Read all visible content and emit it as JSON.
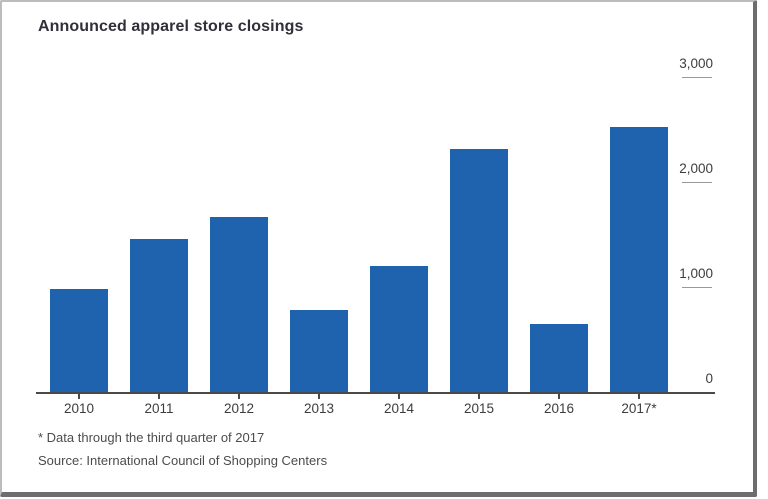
{
  "title": "Announced apparel store closings",
  "footnote": "* Data through the third quarter of 2017",
  "source": "Source: International Council of Shopping Centers",
  "chart_data": {
    "type": "bar",
    "title": "Announced apparel store closings",
    "categories": [
      "2010",
      "2011",
      "2012",
      "2013",
      "2014",
      "2015",
      "2016",
      "2017*"
    ],
    "values": [
      980,
      1460,
      1670,
      780,
      1200,
      2310,
      650,
      2520
    ],
    "xlabel": "",
    "ylabel": "",
    "ylim": [
      0,
      3000
    ],
    "yticks": [
      0,
      1000,
      2000,
      3000
    ],
    "ytick_labels": [
      "0",
      "1,000",
      "2,000",
      "3,000"
    ],
    "axis_side": "right",
    "grid": false,
    "bar_color": "#1f63af",
    "footnote": "* Data through the third quarter of 2017",
    "source": "Source: International Council of Shopping Centers"
  },
  "colors": {
    "bar": "#1f63af",
    "title_text": "#30303a",
    "axis_text": "#3d3d3d",
    "axis_line": "#4a4a4a",
    "tick_line": "#999999",
    "footnote_text": "#4c4c4c",
    "frame_light": "#bcbcbc",
    "frame_dark": "#6d6d6d"
  }
}
